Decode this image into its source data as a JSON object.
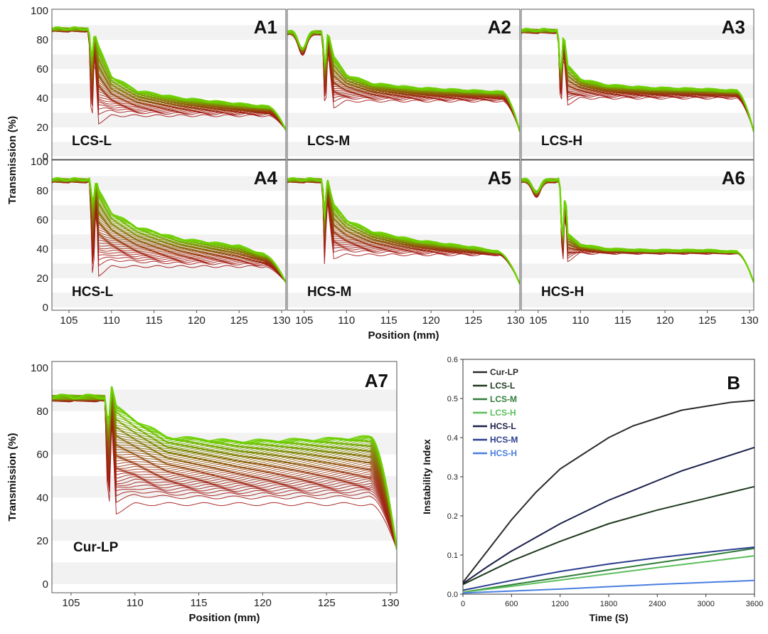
{
  "chart_data": [
    {
      "type": "line",
      "panel": "A1",
      "sample": "LCS-L",
      "ylabel": "Transmission (%)",
      "xlabel": "Position (mm)",
      "xlim": [
        103,
        130.5
      ],
      "ylim": [
        -2,
        101
      ],
      "xticks": [
        105,
        110,
        115,
        120,
        125,
        130
      ],
      "yticks": [
        0,
        20,
        40,
        60,
        80,
        100
      ],
      "profile": {
        "plateau": 87,
        "gap": 107.5,
        "spike": 108,
        "peak": 85,
        "curve": [
          [
            108.5,
            75
          ],
          [
            110,
            55
          ],
          [
            113,
            45
          ],
          [
            118,
            40
          ],
          [
            125,
            36
          ],
          [
            128.5,
            34
          ]
        ],
        "endLevel": 18,
        "earliest": 28,
        "dip": 23,
        "preDip": 0
      },
      "color_start": "#a31513",
      "color_end": "#6cd100"
    },
    {
      "type": "line",
      "panel": "A2",
      "sample": "LCS-M",
      "ylabel": "Transmission (%)",
      "xlabel": "Position (mm)",
      "xlim": [
        103,
        130.5
      ],
      "ylim": [
        -2,
        101
      ],
      "xticks": [
        105,
        110,
        115,
        120,
        125,
        130
      ],
      "yticks": [
        0,
        20,
        40,
        60,
        80,
        100
      ],
      "profile": {
        "plateau": 85,
        "gap": 107.3,
        "spike": 107.8,
        "peak": 86,
        "curve": [
          [
            108.5,
            68
          ],
          [
            110,
            56
          ],
          [
            113,
            50
          ],
          [
            118,
            47
          ],
          [
            125,
            45
          ],
          [
            128.5,
            44
          ]
        ],
        "endLevel": 17,
        "earliest": 38,
        "dip": 34,
        "preDip": 14
      },
      "color_start": "#a31513",
      "color_end": "#6cd100"
    },
    {
      "type": "line",
      "panel": "A3",
      "sample": "LCS-H",
      "ylabel": "Transmission (%)",
      "xlabel": "Position (mm)",
      "xlim": [
        103,
        130.5
      ],
      "ylim": [
        -2,
        101
      ],
      "xticks": [
        105,
        110,
        115,
        120,
        125,
        130
      ],
      "yticks": [
        0,
        20,
        40,
        60,
        80,
        100
      ],
      "profile": {
        "plateau": 86,
        "gap": 107.5,
        "spike": 108,
        "peak": 86,
        "curve": [
          [
            108.5,
            62
          ],
          [
            110,
            53
          ],
          [
            113,
            49
          ],
          [
            118,
            47
          ],
          [
            125,
            46
          ],
          [
            128.5,
            45
          ]
        ],
        "endLevel": 17,
        "earliest": 40,
        "dip": 36,
        "preDip": 0
      },
      "color_start": "#a31513",
      "color_end": "#6cd100"
    },
    {
      "type": "line",
      "panel": "A4",
      "sample": "HCS-L",
      "ylabel": "Transmission (%)",
      "xlabel": "Position (mm)",
      "xlim": [
        103,
        130.5
      ],
      "ylim": [
        -2,
        101
      ],
      "xticks": [
        105,
        110,
        115,
        120,
        125,
        130
      ],
      "yticks": [
        0,
        20,
        40,
        60,
        80,
        100
      ],
      "profile": {
        "plateau": 87,
        "gap": 107.6,
        "spike": 108.2,
        "peak": 88,
        "curve": [
          [
            108.5,
            80
          ],
          [
            110,
            65
          ],
          [
            113,
            55
          ],
          [
            118,
            47
          ],
          [
            125,
            42
          ],
          [
            128,
            36
          ]
        ],
        "endLevel": 17,
        "earliest": 28,
        "dip": 22,
        "preDip": 0
      },
      "color_start": "#a31513",
      "color_end": "#6cd100"
    },
    {
      "type": "line",
      "panel": "A5",
      "sample": "HCS-M",
      "ylabel": "Transmission (%)",
      "xlabel": "Position (mm)",
      "xlim": [
        103,
        130.5
      ],
      "ylim": [
        -2,
        101
      ],
      "xticks": [
        105,
        110,
        115,
        120,
        125,
        130
      ],
      "yticks": [
        0,
        20,
        40,
        60,
        80,
        100
      ],
      "profile": {
        "plateau": 87,
        "gap": 107.3,
        "spike": 107.7,
        "peak": 89,
        "curve": [
          [
            108.5,
            70
          ],
          [
            110,
            60
          ],
          [
            113,
            52
          ],
          [
            118,
            46
          ],
          [
            125,
            41
          ],
          [
            128,
            38
          ]
        ],
        "endLevel": 16,
        "earliest": 36,
        "dip": 34,
        "preDip": 0
      },
      "color_start": "#a31513",
      "color_end": "#6cd100"
    },
    {
      "type": "line",
      "panel": "A6",
      "sample": "HCS-H",
      "ylabel": "Transmission (%)",
      "xlabel": "Position (mm)",
      "xlim": [
        103,
        130.5
      ],
      "ylim": [
        -2,
        101
      ],
      "xticks": [
        105,
        110,
        115,
        120,
        125,
        130
      ],
      "yticks": [
        0,
        20,
        40,
        60,
        80,
        100
      ],
      "profile": {
        "plateau": 87,
        "gap": 107.7,
        "spike": 108.2,
        "peak": 82,
        "curve": [
          [
            108.5,
            50
          ],
          [
            110,
            43
          ],
          [
            113,
            40
          ],
          [
            118,
            39
          ],
          [
            125,
            39
          ],
          [
            128.5,
            38
          ]
        ],
        "endLevel": 17,
        "earliest": 37,
        "dip": 32,
        "preDip": 10
      },
      "color_start": "#a31513",
      "color_end": "#6cd100"
    },
    {
      "type": "line",
      "panel": "A7",
      "sample": "Cur-LP",
      "ylabel": "Transmission (%)",
      "xlabel": "Position (mm)",
      "xlim": [
        103.5,
        130.5
      ],
      "ylim": [
        -4,
        103
      ],
      "xticks": [
        105,
        110,
        115,
        120,
        125,
        130
      ],
      "yticks": [
        0,
        20,
        40,
        60,
        80,
        100
      ],
      "profile": {
        "plateau": 86,
        "gap": 107.8,
        "spike": 108.2,
        "peak": 93,
        "curve": [
          [
            108.5,
            82
          ],
          [
            110,
            76
          ],
          [
            112.5,
            68
          ],
          [
            118,
            66
          ],
          [
            125,
            67
          ],
          [
            128.5,
            68
          ]
        ],
        "endLevel": 16,
        "earliest": 37,
        "dip": 33,
        "preDip": 0
      },
      "color_start": "#a31513",
      "color_end": "#6cd100"
    },
    {
      "type": "line",
      "panel": "B",
      "xlabel": "Time (S)",
      "ylabel": "Instability Index",
      "xlim": [
        0,
        3600
      ],
      "ylim": [
        0,
        0.6
      ],
      "xticks": [
        0,
        600,
        1200,
        1800,
        2400,
        3000,
        3600
      ],
      "yticks": [
        0.0,
        0.1,
        0.2,
        0.3,
        0.4,
        0.5,
        0.6
      ],
      "legend_position": "top-left",
      "series": [
        {
          "name": "Cur-LP",
          "color": "#2b2b2b",
          "x": [
            0,
            300,
            600,
            900,
            1200,
            1500,
            1800,
            2100,
            2400,
            2700,
            3000,
            3300,
            3600
          ],
          "y": [
            0.03,
            0.11,
            0.19,
            0.26,
            0.32,
            0.36,
            0.4,
            0.43,
            0.45,
            0.47,
            0.48,
            0.49,
            0.495
          ]
        },
        {
          "name": "LCS-L",
          "color": "#1f3a1f",
          "x": [
            0,
            600,
            1200,
            1800,
            2400,
            3000,
            3600
          ],
          "y": [
            0.025,
            0.085,
            0.135,
            0.18,
            0.215,
            0.245,
            0.275
          ]
        },
        {
          "name": "LCS-M",
          "color": "#2f7d3a",
          "x": [
            0,
            600,
            1200,
            1800,
            2400,
            3000,
            3600
          ],
          "y": [
            0.005,
            0.024,
            0.043,
            0.062,
            0.08,
            0.098,
            0.117
          ]
        },
        {
          "name": "LCS-H",
          "color": "#5cbf5c",
          "x": [
            0,
            600,
            1200,
            1800,
            2400,
            3000,
            3600
          ],
          "y": [
            0.005,
            0.02,
            0.036,
            0.052,
            0.068,
            0.083,
            0.098
          ]
        },
        {
          "name": "HCS-L",
          "color": "#1b1f4a",
          "x": [
            0,
            300,
            600,
            900,
            1200,
            1500,
            1800,
            2100,
            2400,
            2700,
            3000,
            3300,
            3600
          ],
          "y": [
            0.027,
            0.07,
            0.11,
            0.145,
            0.18,
            0.21,
            0.24,
            0.265,
            0.29,
            0.315,
            0.335,
            0.355,
            0.375
          ]
        },
        {
          "name": "HCS-M",
          "color": "#2c3e8f",
          "x": [
            0,
            600,
            1200,
            1800,
            2400,
            3000,
            3600
          ],
          "y": [
            0.01,
            0.035,
            0.058,
            0.077,
            0.093,
            0.107,
            0.12
          ]
        },
        {
          "name": "HCS-H",
          "color": "#4a7fe0",
          "x": [
            0,
            600,
            1200,
            1800,
            2400,
            3000,
            3600
          ],
          "y": [
            0.003,
            0.008,
            0.013,
            0.019,
            0.025,
            0.03,
            0.035
          ]
        }
      ]
    }
  ]
}
